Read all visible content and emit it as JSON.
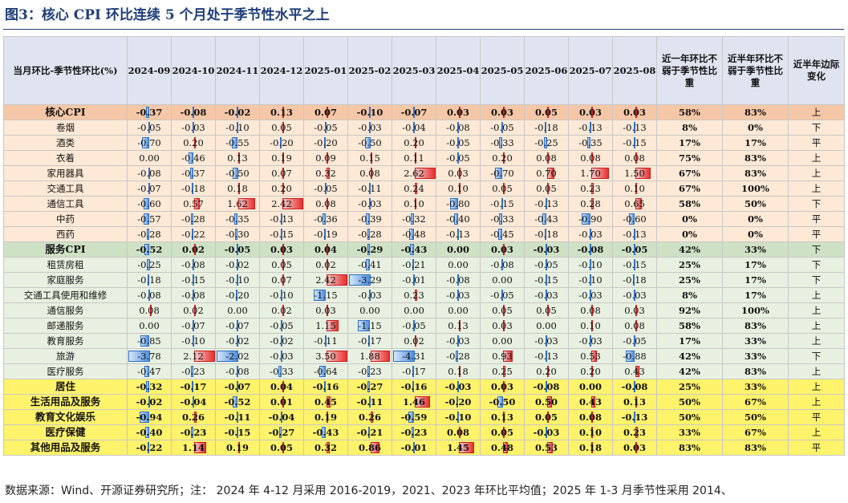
{
  "title": "图3：核心 CPI 环比连续 5 个月处于季节性水平之上",
  "header": {
    "label": "当月环比-季节性环比(%)",
    "months": [
      "2024-09",
      "2024-10",
      "2024-11",
      "2024-12",
      "2025-01",
      "2025-02",
      "2025-03",
      "2025-04",
      "2025-05",
      "2025-06",
      "2025-07",
      "2025-08"
    ],
    "col_year": "近一年环比不弱于季节性比重",
    "col_half": "近半年环比不弱于季节性比重",
    "col_trend": "近半年边际变化"
  },
  "colors": {
    "header_bg": "#dfe4f0",
    "core_bg": "#f6c7a6",
    "core_sub_bg": "#fde9d6",
    "service_bg": "#cfe1c5",
    "service_sub_bg": "#e8f1e1",
    "yellow_bg": "#fff36b",
    "neg_bar": "#4d8fe0",
    "pos_bar": "#e8302f",
    "title_color": "#1f3e7a"
  },
  "rows": [
    {
      "name": "核心CPI",
      "group": "core",
      "bold": true,
      "values": [
        "-0.37",
        "-0.08",
        "-0.02",
        "0.13",
        "0.07",
        "-0.10",
        "-0.07",
        "0.03",
        "0.03",
        "0.05",
        "0.03",
        "0.03"
      ],
      "year": "58%",
      "half": "83%",
      "trend": "上"
    },
    {
      "name": "卷烟",
      "group": "core_sub",
      "bold": false,
      "values": [
        "-0.05",
        "-0.03",
        "-0.10",
        "0.05",
        "-0.05",
        "-0.03",
        "-0.04",
        "-0.08",
        "-0.05",
        "-0.18",
        "-0.13",
        "-0.13"
      ],
      "year": "8%",
      "half": "0%",
      "trend": "下"
    },
    {
      "name": "酒类",
      "group": "core_sub",
      "bold": false,
      "values": [
        "-0.70",
        "0.20",
        "-0.55",
        "-0.20",
        "-0.20",
        "-0.50",
        "0.20",
        "-0.05",
        "-0.33",
        "-0.25",
        "-0.35",
        "-0.15"
      ],
      "year": "17%",
      "half": "17%",
      "trend": "平"
    },
    {
      "name": "衣着",
      "group": "core_sub",
      "bold": false,
      "values": [
        "0.00",
        "-0.46",
        "0.13",
        "0.19",
        "0.09",
        "0.15",
        "0.11",
        "-0.05",
        "0.20",
        "0.08",
        "0.08",
        "0.08"
      ],
      "year": "75%",
      "half": "83%",
      "trend": "上"
    },
    {
      "name": "家用器具",
      "group": "core_sub",
      "bold": false,
      "values": [
        "-0.08",
        "-0.37",
        "-0.50",
        "0.07",
        "0.32",
        "0.08",
        "2.62",
        "0.03",
        "-0.70",
        "0.70",
        "1.70",
        "1.50"
      ],
      "year": "67%",
      "half": "83%",
      "trend": "上"
    },
    {
      "name": "交通工具",
      "group": "core_sub",
      "bold": false,
      "values": [
        "-0.07",
        "-0.18",
        "0.18",
        "0.20",
        "-0.05",
        "-0.11",
        "0.24",
        "0.10",
        "0.05",
        "0.05",
        "0.23",
        "0.10"
      ],
      "year": "67%",
      "half": "100%",
      "trend": "上"
    },
    {
      "name": "通信工具",
      "group": "core_sub",
      "bold": false,
      "values": [
        "-0.60",
        "0.57",
        "1.62",
        "2.42",
        "0.08",
        "-0.03",
        "0.10",
        "-0.80",
        "-0.15",
        "-0.13",
        "0.28",
        "0.65"
      ],
      "year": "58%",
      "half": "50%",
      "trend": "下"
    },
    {
      "name": "中药",
      "group": "core_sub",
      "bold": false,
      "values": [
        "-0.57",
        "-0.28",
        "-0.35",
        "-0.13",
        "-0.36",
        "-0.39",
        "-0.32",
        "-0.40",
        "-0.33",
        "-0.43",
        "-0.90",
        "-0.60"
      ],
      "year": "0%",
      "half": "0%",
      "trend": "平"
    },
    {
      "name": "西药",
      "group": "core_sub",
      "bold": false,
      "values": [
        "-0.28",
        "-0.22",
        "-0.30",
        "-0.15",
        "-0.19",
        "-0.28",
        "-0.48",
        "-0.13",
        "-0.45",
        "-0.18",
        "-0.03",
        "-0.13"
      ],
      "year": "0%",
      "half": "0%",
      "trend": "平"
    },
    {
      "name": "服务CPI",
      "group": "service",
      "bold": true,
      "values": [
        "-0.52",
        "0.02",
        "-0.05",
        "0.03",
        "0.04",
        "-0.29",
        "-0.43",
        "0.00",
        "0.03",
        "-0.03",
        "-0.08",
        "-0.05"
      ],
      "year": "42%",
      "half": "33%",
      "trend": "下"
    },
    {
      "name": "租赁房租",
      "group": "service_sub",
      "bold": false,
      "values": [
        "-0.25",
        "-0.08",
        "-0.02",
        "0.05",
        "0.02",
        "-0.41",
        "-0.21",
        "0.00",
        "-0.08",
        "-0.05",
        "-0.10",
        "-0.15"
      ],
      "year": "25%",
      "half": "17%",
      "trend": "下"
    },
    {
      "name": "家庭服务",
      "group": "service_sub",
      "bold": false,
      "values": [
        "-0.18",
        "-0.15",
        "-0.10",
        "0.07",
        "2.42",
        "-3.29",
        "-0.01",
        "-0.08",
        "0.00",
        "-0.15",
        "-0.10",
        "-0.18"
      ],
      "year": "25%",
      "half": "17%",
      "trend": "下"
    },
    {
      "name": "交通工具使用和维修",
      "group": "service_sub",
      "bold": false,
      "values": [
        "-0.08",
        "-0.08",
        "-0.20",
        "-0.10",
        "-1.15",
        "-0.03",
        "0.23",
        "-0.03",
        "-0.05",
        "-0.03",
        "-0.03",
        "-0.03"
      ],
      "year": "8%",
      "half": "17%",
      "trend": "上"
    },
    {
      "name": "通信服务",
      "group": "service_sub",
      "bold": false,
      "values": [
        "0.08",
        "0.02",
        "0.00",
        "0.02",
        "0.03",
        "0.00",
        "0.00",
        "0.00",
        "0.05",
        "0.05",
        "0.08",
        "0.03"
      ],
      "year": "92%",
      "half": "100%",
      "trend": "上"
    },
    {
      "name": "邮递服务",
      "group": "service_sub",
      "bold": false,
      "values": [
        "0.00",
        "-0.07",
        "-0.07",
        "-0.05",
        "1.15",
        "-1.15",
        "-0.05",
        "0.13",
        "0.03",
        "0.00",
        "0.10",
        "0.08"
      ],
      "year": "58%",
      "half": "83%",
      "trend": "上"
    },
    {
      "name": "教育服务",
      "group": "service_sub",
      "bold": false,
      "values": [
        "-0.85",
        "-0.10",
        "-0.02",
        "-0.02",
        "-0.11",
        "-0.17",
        "0.02",
        "-0.03",
        "0.00",
        "-0.03",
        "-0.03",
        "-0.05"
      ],
      "year": "17%",
      "half": "33%",
      "trend": "上"
    },
    {
      "name": "旅游",
      "group": "service_sub",
      "bold": false,
      "values": [
        "-3.78",
        "2.12",
        "-2.02",
        "-0.03",
        "3.50",
        "1.88",
        "-4.31",
        "-0.28",
        "0.93",
        "-0.13",
        "0.53",
        "-0.88"
      ],
      "year": "42%",
      "half": "33%",
      "trend": "下"
    },
    {
      "name": "医疗服务",
      "group": "service_sub",
      "bold": false,
      "values": [
        "-0.47",
        "-0.23",
        "-0.08",
        "-0.33",
        "-0.64",
        "-0.23",
        "-0.17",
        "0.18",
        "0.25",
        "0.20",
        "0.20",
        "0.43"
      ],
      "year": "42%",
      "half": "83%",
      "trend": "上"
    },
    {
      "name": "居住",
      "group": "yellow",
      "bold": true,
      "values": [
        "-0.32",
        "-0.17",
        "-0.07",
        "0.04",
        "-0.16",
        "-0.27",
        "-0.16",
        "-0.03",
        "0.03",
        "-0.08",
        "0.00",
        "-0.08"
      ],
      "year": "25%",
      "half": "33%",
      "trend": "上"
    },
    {
      "name": "生活用品及服务",
      "group": "yellow",
      "bold": true,
      "values": [
        "-0.02",
        "-0.04",
        "-0.52",
        "0.01",
        "0.45",
        "-0.11",
        "1.46",
        "-0.20",
        "-0.50",
        "0.50",
        "0.43",
        "0.13"
      ],
      "year": "50%",
      "half": "67%",
      "trend": "上"
    },
    {
      "name": "教育文化娱乐",
      "group": "yellow",
      "bold": true,
      "values": [
        "-0.94",
        "0.26",
        "-0.11",
        "-0.04",
        "0.19",
        "0.26",
        "-0.59",
        "-0.10",
        "0.13",
        "0.05",
        "0.08",
        "-0.13"
      ],
      "year": "50%",
      "half": "50%",
      "trend": "平"
    },
    {
      "name": "医疗保健",
      "group": "yellow",
      "bold": true,
      "values": [
        "-0.40",
        "-0.23",
        "-0.15",
        "-0.27",
        "-0.43",
        "-0.21",
        "-0.23",
        "0.08",
        "0.05",
        "-0.03",
        "0.10",
        "0.23"
      ],
      "year": "33%",
      "half": "67%",
      "trend": "上"
    },
    {
      "name": "其他用品及服务",
      "group": "yellow",
      "bold": true,
      "values": [
        "-0.22",
        "1.14",
        "0.19",
        "0.05",
        "0.32",
        "0.86",
        "-0.01",
        "1.45",
        "0.48",
        "0.53",
        "0.18",
        "0.03"
      ],
      "year": "83%",
      "half": "83%",
      "trend": "平"
    }
  ],
  "footnote": "数据来源：Wind、开源证券研究所；注：  2024 年 4-12 月采用 2016-2019，2021、2023 年环比平均值；2025 年 1-3 月季节性采用 2014、"
}
